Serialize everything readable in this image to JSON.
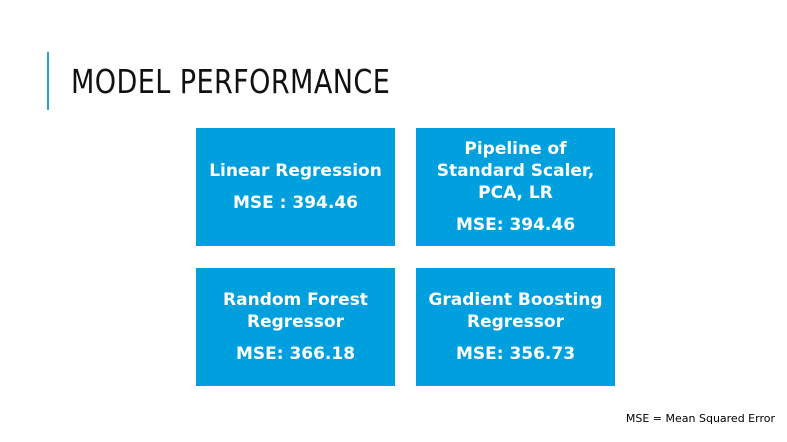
{
  "slide": {
    "title": "MODEL PERFORMANCE",
    "footnote": "MSE = Mean Squared Error"
  },
  "cards": [
    {
      "name": "Linear Regression",
      "metric": "MSE : 394.46"
    },
    {
      "name": "Pipeline of Standard Scaler, PCA, LR",
      "metric": "MSE: 394.46"
    },
    {
      "name": "Random Forest Regressor",
      "metric": "MSE: 366.18"
    },
    {
      "name": "Gradient Boosting Regressor",
      "metric": "MSE: 356.73"
    }
  ],
  "colors": {
    "card_background": "#00a0df",
    "accent": "#2aa0d8",
    "title_text": "#111111"
  }
}
